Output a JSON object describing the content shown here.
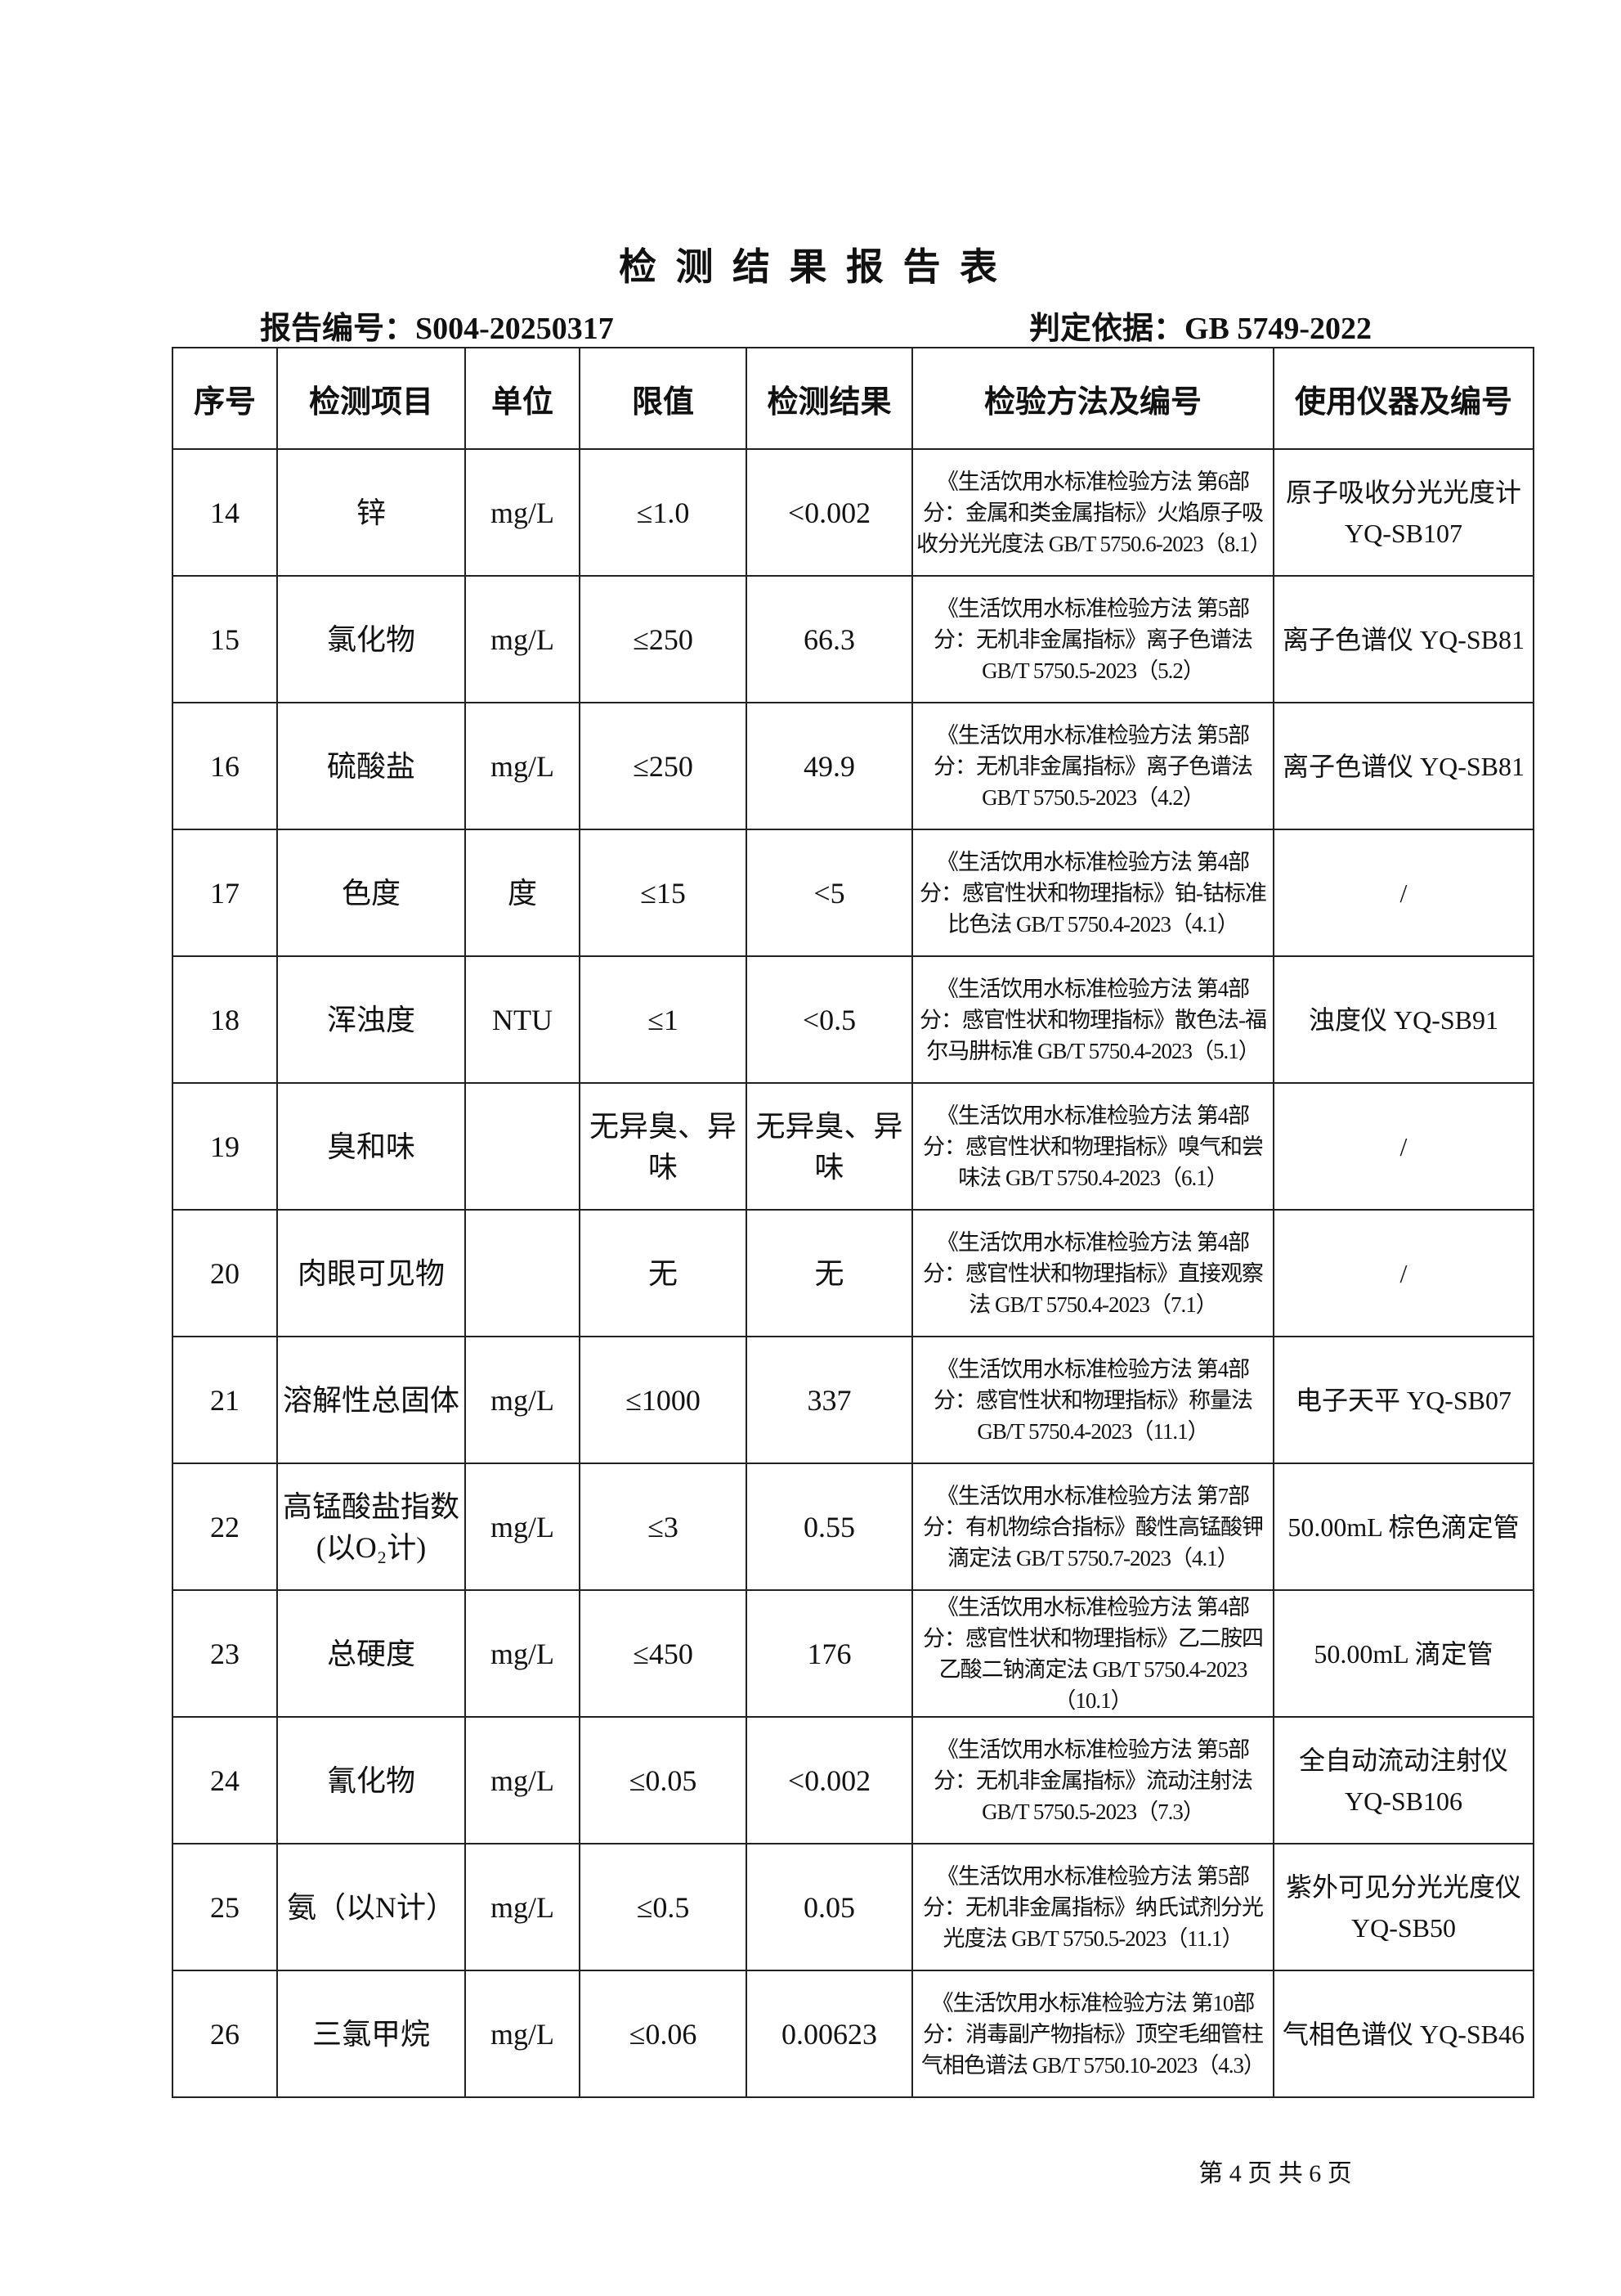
{
  "header": {
    "title": "检 测 结 果 报 告 表",
    "report_no": "报告编号：S004-20250317",
    "basis": "判定依据：GB 5749-2022"
  },
  "table": {
    "columns": [
      "序号",
      "检测项目",
      "单位",
      "限值",
      "检测结果",
      "检验方法及编号",
      "使用仪器及编号"
    ],
    "rows": [
      [
        "14",
        "锌",
        "mg/L",
        "≤1.0",
        "<0.002",
        "《生活饮用水标准检验方法 第6部分：金属和类金属指标》火焰原子吸收分光光度法 GB/T 5750.6-2023（8.1）",
        "原子吸收分光光度计 YQ-SB107"
      ],
      [
        "15",
        "氯化物",
        "mg/L",
        "≤250",
        "66.3",
        "《生活饮用水标准检验方法 第5部分：无机非金属指标》离子色谱法 GB/T 5750.5-2023（5.2）",
        "离子色谱仪 YQ-SB81"
      ],
      [
        "16",
        "硫酸盐",
        "mg/L",
        "≤250",
        "49.9",
        "《生活饮用水标准检验方法 第5部分：无机非金属指标》离子色谱法 GB/T 5750.5-2023（4.2）",
        "离子色谱仪 YQ-SB81"
      ],
      [
        "17",
        "色度",
        "度",
        "≤15",
        "<5",
        "《生活饮用水标准检验方法 第4部分：感官性状和物理指标》铂-钴标准比色法 GB/T 5750.4-2023（4.1）",
        "/"
      ],
      [
        "18",
        "浑浊度",
        "NTU",
        "≤1",
        "<0.5",
        "《生活饮用水标准检验方法 第4部分：感官性状和物理指标》散色法-福尔马肼标准 GB/T 5750.4-2023（5.1）",
        "浊度仪 YQ-SB91"
      ],
      [
        "19",
        "臭和味",
        "",
        "无异臭、异味",
        "无异臭、异味",
        "《生活饮用水标准检验方法 第4部分：感官性状和物理指标》嗅气和尝味法 GB/T 5750.4-2023（6.1）",
        "/"
      ],
      [
        "20",
        "肉眼可见物",
        "",
        "无",
        "无",
        "《生活饮用水标准检验方法 第4部分：感官性状和物理指标》直接观察法 GB/T 5750.4-2023（7.1）",
        "/"
      ],
      [
        "21",
        "溶解性总固体",
        "mg/L",
        "≤1000",
        "337",
        "《生活饮用水标准检验方法 第4部分：感官性状和物理指标》称量法 GB/T 5750.4-2023（11.1）",
        "电子天平 YQ-SB07"
      ],
      [
        "22",
        "高锰酸盐指数(以O₂计)",
        "mg/L",
        "≤3",
        "0.55",
        "《生活饮用水标准检验方法 第7部分：有机物综合指标》酸性高锰酸钾滴定法 GB/T 5750.7-2023（4.1）",
        "50.00mL 棕色滴定管"
      ],
      [
        "23",
        "总硬度",
        "mg/L",
        "≤450",
        "176",
        "《生活饮用水标准检验方法 第4部分：感官性状和物理指标》乙二胺四乙酸二钠滴定法 GB/T 5750.4-2023（10.1）",
        "50.00mL 滴定管"
      ],
      [
        "24",
        "氰化物",
        "mg/L",
        "≤0.05",
        "<0.002",
        "《生活饮用水标准检验方法 第5部分：无机非金属指标》流动注射法 GB/T 5750.5-2023（7.3）",
        "全自动流动注射仪 YQ-SB106"
      ],
      [
        "25",
        "氨（以N计）",
        "mg/L",
        "≤0.5",
        "0.05",
        "《生活饮用水标准检验方法 第5部分：无机非金属指标》纳氏试剂分光光度法 GB/T 5750.5-2023（11.1）",
        "紫外可见分光光度仪 YQ-SB50"
      ],
      [
        "26",
        "三氯甲烷",
        "mg/L",
        "≤0.06",
        "0.00623",
        "《生活饮用水标准检验方法 第10部分：消毒副产物指标》顶空毛细管柱气相色谱法 GB/T 5750.10-2023（4.3）",
        "气相色谱仪 YQ-SB46"
      ]
    ]
  },
  "footer": {
    "page": "第 4 页 共 6 页"
  }
}
